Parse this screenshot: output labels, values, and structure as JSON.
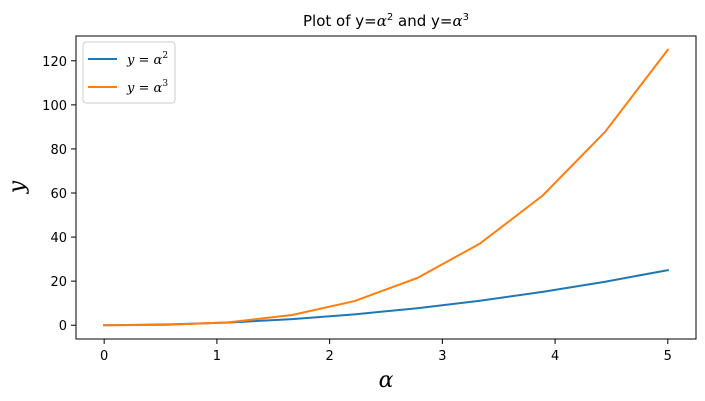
{
  "chart_data": {
    "type": "line",
    "title": {
      "prefix": "Plot of y=",
      "var1": "α",
      "exp1": "2",
      "middle": " and y=",
      "var2": "α",
      "exp2": "3"
    },
    "xlabel": "α",
    "ylabel": "y",
    "xlim": [
      -0.25,
      5.25
    ],
    "ylim": [
      -6.25,
      131.25
    ],
    "xticks": [
      0,
      1,
      2,
      3,
      4,
      5
    ],
    "yticks": [
      0,
      20,
      40,
      60,
      80,
      100,
      120
    ],
    "grid": false,
    "legend_position": "top-left",
    "x": [
      0,
      0.556,
      1.111,
      1.667,
      2.222,
      2.778,
      3.333,
      3.889,
      4.444,
      5.0
    ],
    "series": [
      {
        "name": "y = α2",
        "legend": {
          "lhs": "y",
          "eq": " = ",
          "var": "α",
          "exp": "2"
        },
        "color": "#1f77b4",
        "values": [
          0,
          0.31,
          1.23,
          2.78,
          4.94,
          7.72,
          11.11,
          15.12,
          19.75,
          25.0
        ]
      },
      {
        "name": "y = α3",
        "legend": {
          "lhs": "y",
          "eq": " = ",
          "var": "α",
          "exp": "3"
        },
        "color": "#ff7f0e",
        "values": [
          0,
          0.17,
          1.37,
          4.63,
          10.97,
          21.43,
          37.04,
          58.81,
          87.79,
          125.0
        ]
      }
    ]
  }
}
